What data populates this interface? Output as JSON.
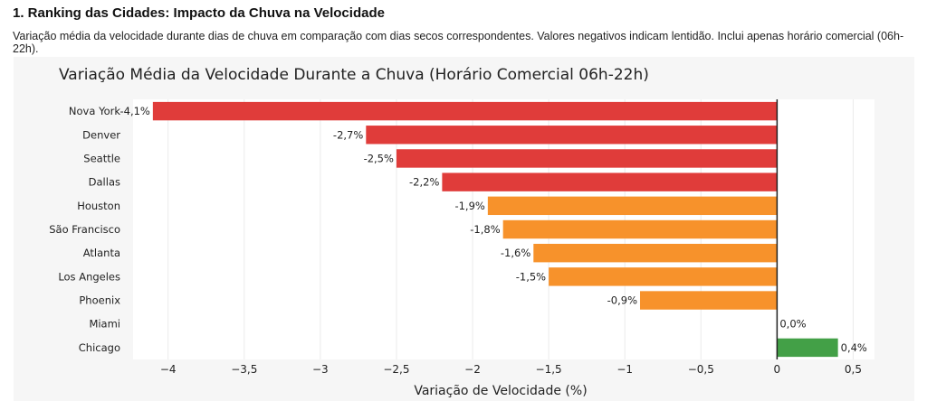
{
  "section_title": "1. Ranking das Cidades: Impacto da Chuva na Velocidade",
  "section_description": "Variação média da velocidade durante dias de chuva em comparação com dias secos correspondentes. Valores negativos indicam lentidão. Inclui apenas horário comercial (06h-22h).",
  "chart_data": {
    "type": "bar",
    "orientation": "horizontal",
    "title": "Variação Média da Velocidade Durante a Chuva (Horário Comercial 06h-22h)",
    "xlabel": "Variação de Velocidade (%)",
    "ylabel": "",
    "xlim": [
      -4.23,
      0.64
    ],
    "grid": true,
    "categories": [
      "Nova York",
      "Denver",
      "Seattle",
      "Dallas",
      "Houston",
      "São Francisco",
      "Atlanta",
      "Los Angeles",
      "Phoenix",
      "Miami",
      "Chicago"
    ],
    "values": [
      -4.1,
      -2.7,
      -2.5,
      -2.2,
      -1.9,
      -1.8,
      -1.6,
      -1.5,
      -0.9,
      0.0,
      0.4
    ],
    "data_labels": [
      "-4,1%",
      "-2,7%",
      "-2,5%",
      "-2,2%",
      "-1,9%",
      "-1,8%",
      "-1,6%",
      "-1,5%",
      "-0,9%",
      "0,0%",
      "0,4%"
    ],
    "xticks": [
      -4,
      -3.5,
      -3,
      -2.5,
      -2,
      -1.5,
      -1,
      -0.5,
      0,
      0.5
    ],
    "xtick_labels": [
      "−4",
      "−3,5",
      "−3",
      "−2,5",
      "−2",
      "−1,5",
      "−1",
      "−0,5",
      "0",
      "0,5"
    ],
    "colors": {
      "severe": "#e03c3a",
      "moderate": "#f7922b",
      "positive": "#43a047"
    },
    "bar_colors": [
      "#e03c3a",
      "#e03c3a",
      "#e03c3a",
      "#e03c3a",
      "#f7922b",
      "#f7922b",
      "#f7922b",
      "#f7922b",
      "#f7922b",
      "#f7922b",
      "#43a047"
    ]
  }
}
